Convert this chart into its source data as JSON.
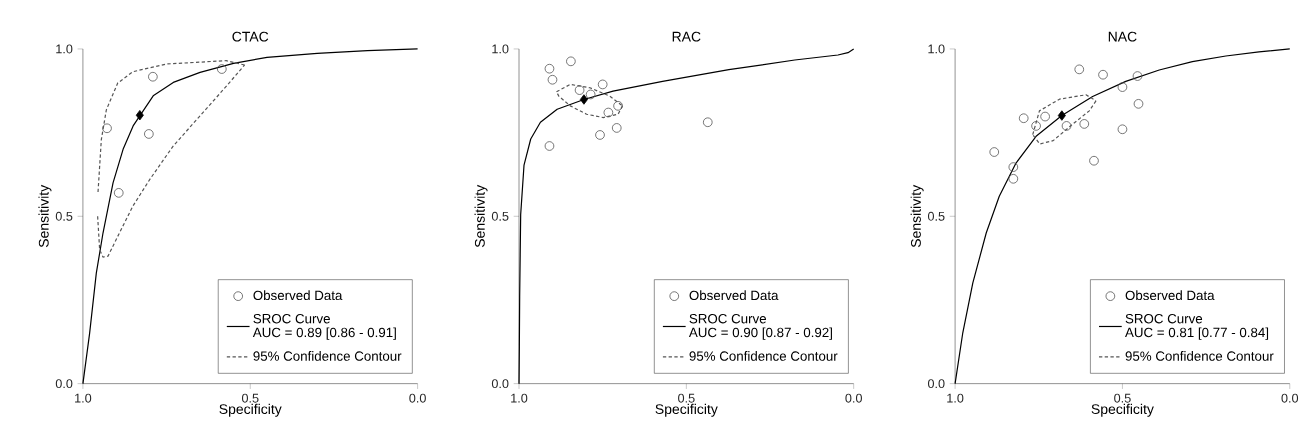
{
  "chart_data": [
    {
      "type": "scatter",
      "title": "CTAC",
      "xlabel": "Specificity",
      "ylabel": "Sensitivity",
      "xlim": [
        1.0,
        0.0
      ],
      "ylim": [
        0.0,
        1.0
      ],
      "xticks": [
        {
          "value": 1.0,
          "label": "1.0"
        },
        {
          "value": 0.5,
          "label": "0.5"
        },
        {
          "value": 0.0,
          "label": "0.0"
        }
      ],
      "yticks": [
        {
          "value": 0.0,
          "label": "0.0"
        },
        {
          "value": 0.5,
          "label": "0.5"
        },
        {
          "value": 1.0,
          "label": "1.0"
        }
      ],
      "legend": "bottom right",
      "annotations": [
        "AUC = 0.89 [0.86 - 0.91]"
      ],
      "series": [
        {
          "name": "Observed Data",
          "marker": "circle",
          "color": "#555555",
          "x": [
            0.928,
            0.893,
            0.803,
            0.791,
            0.585
          ],
          "values": [
            0.763,
            0.57,
            0.746,
            0.917,
            0.94
          ]
        },
        {
          "name": "SROC Curve",
          "type": "line",
          "marker": "none",
          "line_style": "solid",
          "color": "#000000",
          "x": [
            1.0,
            0.98,
            0.96,
            0.94,
            0.91,
            0.88,
            0.85,
            0.83,
            0.79,
            0.73,
            0.65,
            0.55,
            0.45,
            0.3,
            0.15,
            0.0
          ],
          "values": [
            0.0,
            0.15,
            0.33,
            0.45,
            0.6,
            0.7,
            0.77,
            0.8,
            0.86,
            0.9,
            0.93,
            0.957,
            0.975,
            0.987,
            0.995,
            1.0
          ]
        },
        {
          "name": "95% Confidence Contour",
          "type": "line",
          "marker": "none",
          "line_style": "dashed",
          "color": "#555555",
          "x": [
            0.517,
            0.572,
            0.751,
            0.851,
            0.896,
            0.93,
            0.945,
            0.955
          ],
          "values": [
            0.952,
            0.965,
            0.955,
            0.932,
            0.898,
            0.818,
            0.729,
            0.57
          ]
        },
        {
          "type": "line",
          "marker": "none",
          "line_style": "dashed",
          "color": "#555555",
          "x": [
            0.956,
            0.95,
            0.94,
            0.925,
            0.891,
            0.851,
            0.801,
            0.731,
            0.652,
            0.572,
            0.517
          ],
          "values": [
            0.5,
            0.4,
            0.378,
            0.381,
            0.45,
            0.53,
            0.609,
            0.709,
            0.798,
            0.888,
            0.952
          ]
        },
        {
          "marker": "diamond",
          "color": "#000000",
          "x": [
            0.83
          ],
          "values": [
            0.802
          ]
        }
      ]
    },
    {
      "type": "scatter",
      "title": "RAC",
      "xlabel": "Specificity",
      "ylabel": "Sensitivity",
      "xlim": [
        1.0,
        0.0
      ],
      "ylim": [
        0.0,
        1.0
      ],
      "xticks": [
        {
          "value": 1.0,
          "label": "1.0"
        },
        {
          "value": 0.5,
          "label": "0.5"
        },
        {
          "value": 0.0,
          "label": "0.0"
        }
      ],
      "yticks": [
        {
          "value": 0.0,
          "label": "0.0"
        },
        {
          "value": 0.5,
          "label": "0.5"
        },
        {
          "value": 1.0,
          "label": "1.0"
        }
      ],
      "legend": "bottom right",
      "annotations": [
        "AUC = 0.90 [0.87 - 0.92]"
      ],
      "series": [
        {
          "name": "Observed Data",
          "marker": "circle",
          "color": "#555555",
          "x": [
            0.909,
            0.9,
            0.845,
            0.819,
            0.786,
            0.75,
            0.733,
            0.704,
            0.708,
            0.758,
            0.436,
            0.909
          ],
          "values": [
            0.941,
            0.908,
            0.963,
            0.877,
            0.864,
            0.894,
            0.81,
            0.83,
            0.764,
            0.743,
            0.781,
            0.71
          ]
        },
        {
          "name": "SROC Curve",
          "type": "line",
          "marker": "none",
          "line_style": "solid",
          "color": "#000000",
          "x": [
            1.0,
            0.999,
            0.998,
            0.995,
            0.985,
            0.965,
            0.936,
            0.886,
            0.806,
            0.719,
            0.571,
            0.373,
            0.176,
            0.047,
            0.017,
            0.0
          ],
          "values": [
            0.0,
            0.11,
            0.26,
            0.505,
            0.653,
            0.731,
            0.781,
            0.82,
            0.849,
            0.874,
            0.903,
            0.938,
            0.967,
            0.982,
            0.989,
            1.0
          ]
        },
        {
          "name": "95% Confidence Contour",
          "type": "line",
          "marker": "none",
          "line_style": "dashed",
          "color": "#555555",
          "x": [
            0.888,
            0.847,
            0.788,
            0.729,
            0.691
          ],
          "values": [
            0.872,
            0.894,
            0.884,
            0.859,
            0.83
          ]
        },
        {
          "type": "line",
          "marker": "none",
          "line_style": "dashed",
          "color": "#555555",
          "x": [
            0.691,
            0.704,
            0.748,
            0.798,
            0.847,
            0.881,
            0.888
          ],
          "values": [
            0.83,
            0.805,
            0.795,
            0.805,
            0.83,
            0.859,
            0.872
          ]
        },
        {
          "marker": "diamond",
          "color": "#000000",
          "x": [
            0.806
          ],
          "values": [
            0.849
          ]
        }
      ]
    },
    {
      "type": "scatter",
      "title": "NAC",
      "xlabel": "Specificity",
      "ylabel": "Sensitivity",
      "xlim": [
        1.0,
        0.0
      ],
      "ylim": [
        0.0,
        1.0
      ],
      "xticks": [
        {
          "value": 1.0,
          "label": "1.0"
        },
        {
          "value": 0.5,
          "label": "0.5"
        },
        {
          "value": 0.0,
          "label": "0.0"
        }
      ],
      "yticks": [
        {
          "value": 0.0,
          "label": "0.0"
        },
        {
          "value": 0.5,
          "label": "0.5"
        },
        {
          "value": 1.0,
          "label": "1.0"
        }
      ],
      "legend": "bottom right",
      "annotations": [
        "AUC = 0.81 [0.77 - 0.84]"
      ],
      "series": [
        {
          "name": "Observed Data",
          "marker": "circle",
          "color": "#555555",
          "x": [
            0.883,
            0.826,
            0.826,
            0.795,
            0.758,
            0.731,
            0.667,
            0.614,
            0.629,
            0.558,
            0.585,
            0.5,
            0.5,
            0.455,
            0.452
          ],
          "values": [
            0.692,
            0.647,
            0.612,
            0.793,
            0.77,
            0.798,
            0.77,
            0.776,
            0.939,
            0.923,
            0.666,
            0.886,
            0.76,
            0.919,
            0.836
          ]
        },
        {
          "name": "SROC Curve",
          "type": "line",
          "marker": "none",
          "line_style": "solid",
          "color": "#000000",
          "x": [
            1.0,
            0.977,
            0.947,
            0.907,
            0.868,
            0.818,
            0.758,
            0.681,
            0.589,
            0.49,
            0.39,
            0.291,
            0.191,
            0.092,
            0.0
          ],
          "values": [
            0.0,
            0.152,
            0.301,
            0.45,
            0.56,
            0.659,
            0.739,
            0.801,
            0.858,
            0.903,
            0.937,
            0.962,
            0.979,
            0.991,
            1.0
          ]
        },
        {
          "name": "95% Confidence Contour",
          "type": "line",
          "marker": "none",
          "line_style": "dashed",
          "color": "#555555",
          "x": [
            0.768,
            0.748,
            0.688,
            0.609,
            0.579
          ],
          "values": [
            0.744,
            0.815,
            0.85,
            0.863,
            0.845
          ]
        },
        {
          "type": "line",
          "marker": "none",
          "line_style": "dashed",
          "color": "#555555",
          "x": [
            0.579,
            0.599,
            0.649,
            0.707,
            0.747,
            0.768
          ],
          "values": [
            0.845,
            0.815,
            0.775,
            0.726,
            0.716,
            0.744
          ]
        },
        {
          "marker": "diamond",
          "color": "#000000",
          "x": [
            0.681
          ],
          "values": [
            0.801
          ]
        }
      ]
    }
  ]
}
